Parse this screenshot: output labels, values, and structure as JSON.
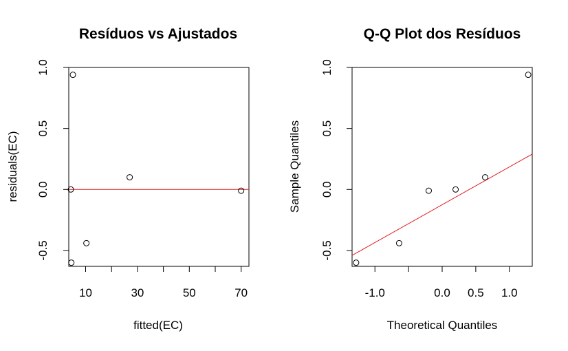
{
  "chart_data": [
    {
      "type": "scatter",
      "title": "Resíduos vs Ajustados",
      "xlabel": "fitted(EC)",
      "ylabel": "residuals(EC)",
      "xlim": [
        3.5,
        73
      ],
      "ylim": [
        -0.63,
        1.0
      ],
      "xticks": [
        10,
        20,
        30,
        40,
        50,
        60,
        70
      ],
      "xtick_labels": [
        "10",
        "",
        "30",
        "",
        "50",
        "",
        "70"
      ],
      "yticks": [
        -0.5,
        0.0,
        0.5,
        1.0
      ],
      "ytick_labels": [
        "-0.5",
        "0.0",
        "0.5",
        "1.0"
      ],
      "points": [
        {
          "x": 5.1,
          "y": 0.94
        },
        {
          "x": 4.3,
          "y": 0.0
        },
        {
          "x": 4.5,
          "y": -0.6
        },
        {
          "x": 10.3,
          "y": -0.44
        },
        {
          "x": 27.0,
          "y": 0.1
        },
        {
          "x": 70.0,
          "y": -0.01
        }
      ],
      "reference_line": {
        "type": "horizontal",
        "y": 0,
        "color": "#e41a1c"
      },
      "grid": false
    },
    {
      "type": "scatter",
      "title": "Q-Q Plot dos Resíduos",
      "xlabel": "Theoretical Quantiles",
      "ylabel": "Sample Quantiles",
      "xlim": [
        -1.34,
        1.34
      ],
      "ylim": [
        -0.63,
        1.0
      ],
      "xticks": [
        -1.0,
        -0.5,
        0.0,
        0.5,
        1.0
      ],
      "xtick_labels": [
        "-1.0",
        "",
        "0.0",
        "0.5",
        "1.0"
      ],
      "yticks": [
        -0.5,
        0.0,
        0.5,
        1.0
      ],
      "ytick_labels": [
        "-0.5",
        "0.0",
        "0.5",
        "1.0"
      ],
      "points": [
        {
          "x": -1.28,
          "y": -0.6
        },
        {
          "x": -0.64,
          "y": -0.44
        },
        {
          "x": -0.2,
          "y": -0.01
        },
        {
          "x": 0.2,
          "y": 0.0
        },
        {
          "x": 0.64,
          "y": 0.1
        },
        {
          "x": 1.28,
          "y": 0.94
        }
      ],
      "reference_line": {
        "type": "qqline",
        "x1": -1.34,
        "y1": -0.54,
        "x2": 1.34,
        "y2": 0.29,
        "color": "#e41a1c"
      },
      "grid": false
    }
  ]
}
